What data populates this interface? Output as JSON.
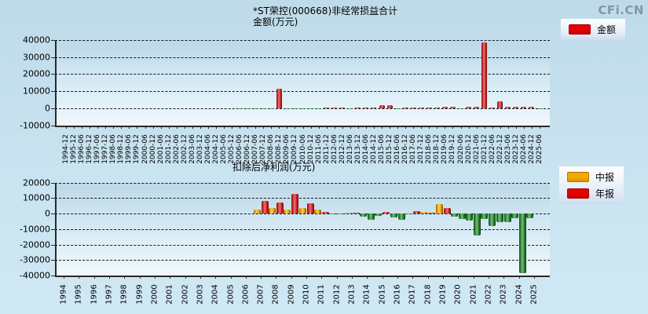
{
  "logo": {
    "text": "CFi.CN",
    "color": "#8495aa"
  },
  "top_chart": {
    "title": "*ST荣控(000668)非经常损益合计",
    "unit_label": "金额(万元)",
    "legend": [
      {
        "label": "金额",
        "color": "#e60000"
      }
    ],
    "y_tick_labels": [
      "40000",
      "30000",
      "20000",
      "10000",
      "0",
      "-10000"
    ]
  },
  "bottom_chart": {
    "title": "扣除后净利润(万元)",
    "legend": [
      {
        "label": "中报",
        "color": "#f5a800"
      },
      {
        "label": "年报",
        "color": "#e60000"
      }
    ],
    "y_tick_labels": [
      "20000",
      "10000",
      "0",
      "-10000",
      "-20000",
      "-30000",
      "-40000"
    ]
  },
  "chart_data": [
    {
      "type": "bar",
      "title": "*ST荣控(000668)非经常损益合计",
      "ylabel": "金额(万元)",
      "series_name": "金额",
      "ylim": [
        -10000,
        40000
      ],
      "grid": true,
      "legend_position": "top-right",
      "positive_color": "#d42a2a",
      "negative_color": "#2f8a36",
      "categories": [
        "1994-12",
        "1995-12",
        "1996-06",
        "1996-12",
        "1997-06",
        "1997-12",
        "1998-06",
        "1998-12",
        "1999-06",
        "1999-12",
        "2000-06",
        "2000-12",
        "2001-06",
        "2001-12",
        "2002-06",
        "2002-12",
        "2003-06",
        "2003-12",
        "2004-06",
        "2004-12",
        "2005-06",
        "2005-12",
        "2006-06",
        "2006-12",
        "2007-06",
        "2007-12",
        "2008-06",
        "2008-12",
        "2009-06",
        "2009-12",
        "2010-06",
        "2010-12",
        "2011-06",
        "2011-12",
        "2012-06",
        "2012-12",
        "2013-06",
        "2013-12",
        "2014-06",
        "2014-12",
        "2015-06",
        "2015-12",
        "2016-06",
        "2016-12",
        "2017-06",
        "2017-12",
        "2018-06",
        "2018-12",
        "2019-06",
        "2019-12",
        "2020-06",
        "2020-12",
        "2021-06",
        "2021-12",
        "2022-06",
        "2022-12",
        "2023-06",
        "2023-12",
        "2024-06",
        "2024-12",
        "2025-06"
      ],
      "values": [
        null,
        null,
        null,
        null,
        null,
        null,
        null,
        null,
        null,
        null,
        null,
        null,
        null,
        null,
        null,
        null,
        null,
        null,
        null,
        null,
        null,
        null,
        -300,
        -500,
        -300,
        -500,
        -400,
        11500,
        -300,
        -500,
        -400,
        -400,
        -300,
        500,
        600,
        500,
        -400,
        400,
        300,
        500,
        1800,
        1800,
        -400,
        400,
        300,
        400,
        300,
        500,
        900,
        900,
        -500,
        800,
        900,
        38500,
        500,
        4000,
        900,
        900,
        700,
        900,
        -400
      ]
    },
    {
      "type": "bar",
      "title": "扣除后净利润(万元)",
      "ylim": [
        -40000,
        20000
      ],
      "grid": true,
      "legend_position": "top-right",
      "negative_color": "#2f8a36",
      "categories": [
        "1994",
        "1995",
        "1996",
        "1997",
        "1998",
        "1999",
        "2000",
        "2001",
        "2002",
        "2003",
        "2004",
        "2005",
        "2006",
        "2007",
        "2008",
        "2009",
        "2010",
        "2011",
        "2012",
        "2013",
        "2014",
        "2015",
        "2016",
        "2017",
        "2018",
        "2019",
        "2020",
        "2021",
        "2022",
        "2023",
        "2024",
        "2025"
      ],
      "series": [
        {
          "name": "中报",
          "color": "#f5a800",
          "values": [
            null,
            null,
            null,
            null,
            null,
            null,
            null,
            null,
            null,
            null,
            null,
            null,
            null,
            2500,
            3500,
            2500,
            3500,
            2500,
            -300,
            400,
            -1800,
            -1500,
            -2500,
            -300,
            800,
            6000,
            -2000,
            -4700,
            -3500,
            -5700,
            -3200,
            -3200
          ]
        },
        {
          "name": "年报",
          "color": "#d42a2a",
          "values": [
            null,
            null,
            null,
            null,
            null,
            null,
            null,
            null,
            null,
            null,
            null,
            null,
            null,
            8000,
            7000,
            12500,
            6500,
            1200,
            -400,
            600,
            -4200,
            800,
            -4200,
            1500,
            500,
            3500,
            -3500,
            -14000,
            -8200,
            -5700,
            -38500,
            null
          ]
        }
      ]
    }
  ]
}
